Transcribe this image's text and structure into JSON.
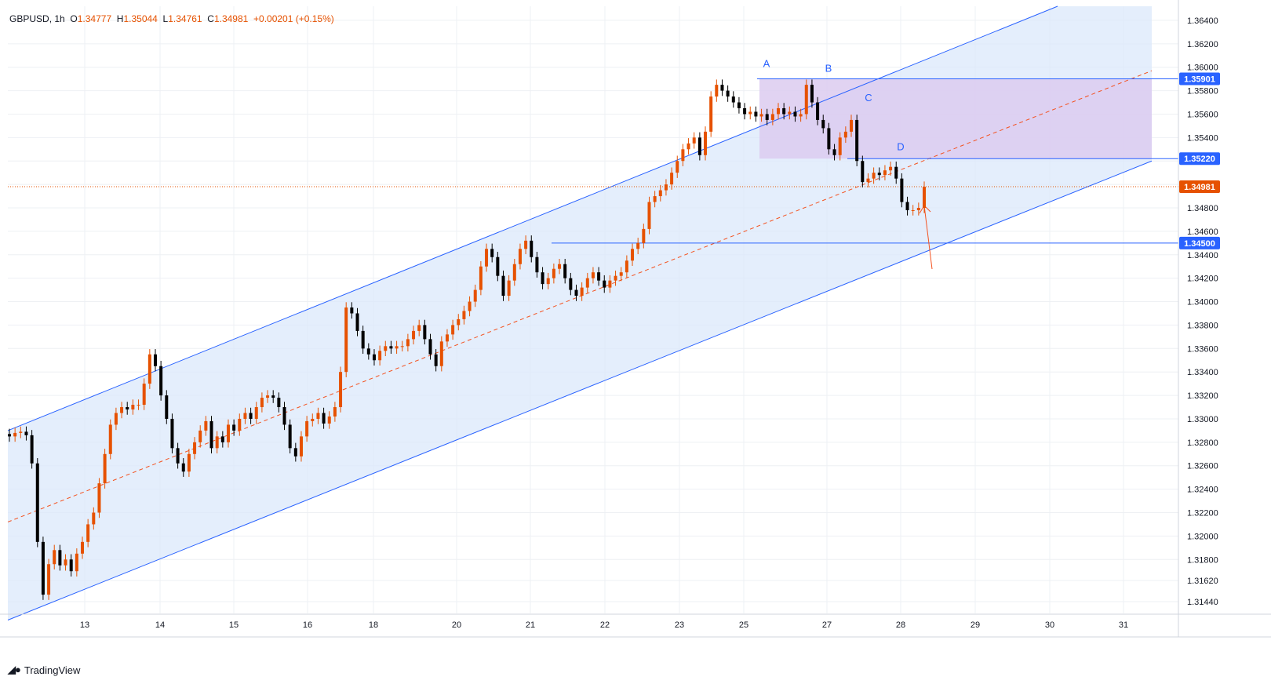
{
  "legend": {
    "symbol": "GBPUSD",
    "interval": "1h",
    "o_label": "O",
    "o": "1.34777",
    "h_label": "H",
    "h": "1.35044",
    "l_label": "L",
    "l": "1.34761",
    "c_label": "C",
    "c": "1.34981",
    "change": "+0.00201 (+0.15%)"
  },
  "brand": {
    "name": "TradingView",
    "logo_icon": "tradingview-logo-icon"
  },
  "colors": {
    "candle": "#e65100",
    "candle_down": "#000000",
    "channel_line": "#2962ff",
    "channel_fill": "#dbe8fb",
    "zone_fill": "#dccbf0",
    "midline": "#f4511e",
    "current_price": "#e65100",
    "price_badge_blue": "#2962ff",
    "grid": "#eef0f4"
  },
  "chart_data": {
    "type": "candlestick",
    "symbol": "GBPUSD",
    "interval": "1h",
    "y_ticks": [
      "1.31440",
      "1.31620",
      "1.31800",
      "1.32000",
      "1.32200",
      "1.32400",
      "1.32600",
      "1.32800",
      "1.33000",
      "1.33200",
      "1.33400",
      "1.33600",
      "1.33800",
      "1.34000",
      "1.34200",
      "1.34400",
      "1.34600",
      "1.34800",
      "1.35000",
      "1.35200",
      "1.35400",
      "1.35600",
      "1.35800",
      "1.36000",
      "1.36200",
      "1.36400"
    ],
    "x_ticks": [
      "13",
      "14",
      "15",
      "16",
      "18",
      "20",
      "21",
      "22",
      "23",
      "25",
      "27",
      "28",
      "29",
      "30",
      "31"
    ],
    "ylim": [
      1.3134,
      1.3652
    ],
    "price_levels": [
      {
        "label": "1.35901",
        "value": 1.35901,
        "color": "blue"
      },
      {
        "label": "1.35220",
        "value": 1.3522,
        "color": "blue"
      },
      {
        "label": "1.34981",
        "value": 1.34981,
        "color": "orange"
      },
      {
        "label": "1.34500",
        "value": 1.345,
        "color": "blue"
      }
    ],
    "pattern_labels": [
      {
        "text": "A",
        "price": 1.3592
      },
      {
        "text": "B",
        "price": 1.3588
      },
      {
        "text": "C",
        "price": 1.3563
      },
      {
        "text": "D",
        "price": 1.3521
      }
    ],
    "channel": {
      "upper": [
        {
          "price": 1.329
        },
        {
          "price": 1.3645
        }
      ],
      "lower": [
        {
          "price": 1.3131
        },
        {
          "price": 1.352
        }
      ],
      "mid": [
        {
          "price": 1.3212
        },
        {
          "price": 1.3597
        }
      ]
    },
    "series": [
      {
        "name": "GBPUSD",
        "close": [
          1.3285,
          1.3288,
          1.3289,
          1.3286,
          1.3262,
          1.3195,
          1.315,
          1.3176,
          1.3188,
          1.3175,
          1.318,
          1.317,
          1.3185,
          1.3195,
          1.321,
          1.322,
          1.3245,
          1.327,
          1.3295,
          1.3305,
          1.331,
          1.3308,
          1.3312,
          1.3312,
          1.333,
          1.3355,
          1.3345,
          1.332,
          1.33,
          1.3275,
          1.3262,
          1.3255,
          1.327,
          1.328,
          1.329,
          1.3298,
          1.3275,
          1.3285,
          1.328,
          1.3295,
          1.329,
          1.33,
          1.3305,
          1.33,
          1.331,
          1.3318,
          1.332,
          1.3318,
          1.331,
          1.3295,
          1.3275,
          1.3268,
          1.3285,
          1.3298,
          1.33,
          1.3305,
          1.3296,
          1.3302,
          1.331,
          1.334,
          1.3395,
          1.339,
          1.3375,
          1.336,
          1.3355,
          1.335,
          1.3358,
          1.3362,
          1.336,
          1.3362,
          1.3362,
          1.3368,
          1.3375,
          1.338,
          1.3368,
          1.3355,
          1.3345,
          1.3366,
          1.3372,
          1.338,
          1.3385,
          1.3392,
          1.34,
          1.341,
          1.343,
          1.3445,
          1.3438,
          1.3422,
          1.3405,
          1.3418,
          1.3432,
          1.3445,
          1.3452,
          1.3438,
          1.3425,
          1.3415,
          1.342,
          1.3428,
          1.3432,
          1.342,
          1.341,
          1.3405,
          1.3412,
          1.342,
          1.3425,
          1.3418,
          1.3412,
          1.3418,
          1.3422,
          1.3425,
          1.3435,
          1.3445,
          1.345,
          1.3462,
          1.3485,
          1.349,
          1.3495,
          1.35,
          1.351,
          1.352,
          1.353,
          1.3535,
          1.354,
          1.3525,
          1.3545,
          1.3575,
          1.3585,
          1.358,
          1.3575,
          1.357,
          1.3565,
          1.356,
          1.3562,
          1.3558,
          1.356,
          1.3555,
          1.356,
          1.3565,
          1.356,
          1.3562,
          1.3558,
          1.356,
          1.3585,
          1.357,
          1.3555,
          1.3548,
          1.353,
          1.3525,
          1.354,
          1.3545,
          1.3555,
          1.352,
          1.3502,
          1.3505,
          1.351,
          1.3508,
          1.3512,
          1.3515,
          1.3505,
          1.3485,
          1.3478,
          1.3478,
          1.348,
          1.3498
        ]
      }
    ]
  }
}
